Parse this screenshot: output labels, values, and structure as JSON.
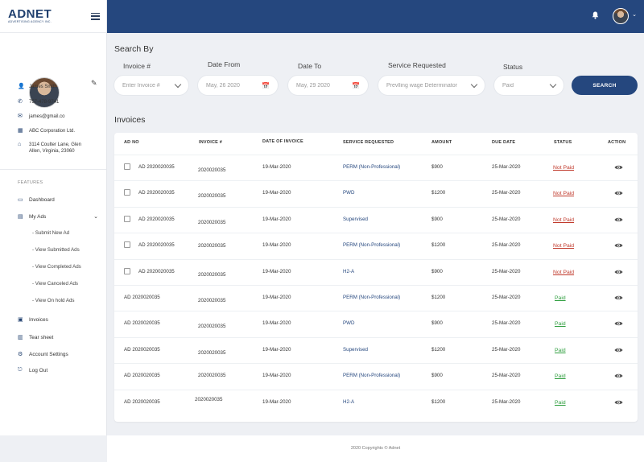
{
  "brand": {
    "name": "ADNET",
    "tagline": "ADVERTISING AGENCY INC."
  },
  "profile": {
    "name": "James Smith",
    "phone": "757-478-9741",
    "email": "james@gmail.co",
    "company": "ABC Corporation Ltd.",
    "address": "3114 Coulter Lane, Glen Allen, Virginia, 23060"
  },
  "nav": {
    "section_label": "FEATURES",
    "dashboard": "Dashboard",
    "my_ads": "My Ads",
    "sub_items": [
      "- Submit New Ad",
      "- View Submitted Ads",
      "- View Completed Ads",
      "- View Canceled Ads",
      "- View On hold Ads"
    ],
    "invoices": "Invoices",
    "tear_sheet": "Tear sheet",
    "account_settings": "Account Settings",
    "log_out": "Log Out"
  },
  "search": {
    "title": "Search By",
    "invoice_label": "Invoice #",
    "invoice_placeholder": "Enter Invoice #",
    "date_from_label": "Date From",
    "date_from_value": "May, 26 2020",
    "date_to_label": "Date To",
    "date_to_value": "May, 29 2020",
    "service_label": "Service Requested",
    "service_value": "Prevlling wage Determinator",
    "status_label": "Status",
    "status_value": "Paid",
    "button": "SEARCH"
  },
  "invoices": {
    "title": "Invoices",
    "columns": [
      "AD NO",
      "INVOICE #",
      "DATE OF INVOICE",
      "SERVICE REQUESTED",
      "AMOUNT",
      "DUE DATE",
      "STATUS",
      "ACTION"
    ],
    "rows": [
      {
        "ad_no": "AD 2020020035",
        "invoice": "2020020035",
        "date": "19-Mar-2020",
        "service": "PERM (Non-Professional)",
        "amount": "$900",
        "due": "25-Mar-2020",
        "status": "Not Paid",
        "checkbox": true
      },
      {
        "ad_no": "AD 2020020035",
        "invoice": "2020020035",
        "date": "19-Mar-2020",
        "service": "PWD",
        "amount": "$1200",
        "due": "25-Mar-2020",
        "status": "Not Paid",
        "checkbox": true
      },
      {
        "ad_no": "AD 2020020035",
        "invoice": "2020020035",
        "date": "19-Mar-2020",
        "service": "Supervised",
        "amount": "$900",
        "due": "25-Mar-2020",
        "status": "Not Paid",
        "checkbox": true
      },
      {
        "ad_no": "AD 2020020035",
        "invoice": "2020020035",
        "date": "19-Mar-2020",
        "service": "PERM (Non-Professional)",
        "amount": "$1200",
        "due": "25-Mar-2020",
        "status": "Not Paid",
        "checkbox": true
      },
      {
        "ad_no": "AD 2020020035",
        "invoice": "2020020035",
        "date": "19-Mar-2020",
        "service": "H2-A",
        "amount": "$900",
        "due": "25-Mar-2020",
        "status": "Not Paid",
        "checkbox": true
      },
      {
        "ad_no": "AD 2020020035",
        "invoice": "2020020035",
        "date": "19-Mar-2020",
        "service": "PERM (Non-Professional)",
        "amount": "$1200",
        "due": "25-Mar-2020",
        "status": "Paid",
        "checkbox": false
      },
      {
        "ad_no": "AD 2020020035",
        "invoice": "2020020035",
        "date": "19-Mar-2020",
        "service": "PWD",
        "amount": "$900",
        "due": "25-Mar-2020",
        "status": "Paid",
        "checkbox": false
      },
      {
        "ad_no": "AD 2020020035",
        "invoice": "2020020035",
        "date": "19-Mar-2020",
        "service": "Supervised",
        "amount": "$1200",
        "due": "25-Mar-2020",
        "status": "Paid",
        "checkbox": false
      },
      {
        "ad_no": "AD 2020020035",
        "invoice": "2020020035",
        "date": "19-Mar-2020",
        "service": "PERM (Non-Professional)",
        "amount": "$900",
        "due": "25-Mar-2020",
        "status": "Paid",
        "checkbox": false
      },
      {
        "ad_no": "AD 2020020035",
        "invoice": "2020020035",
        "date": "19-Mar-2020",
        "service": "H2-A",
        "amount": "$1200",
        "due": "25-Mar-2020",
        "status": "Paid",
        "checkbox": false
      }
    ]
  },
  "footer": "2020 Copyrights © Adnet",
  "colors": {
    "primary": "#25477e",
    "not_paid": "#c0392b",
    "paid": "#2e9e3e"
  },
  "icons": {
    "bell": "bell-icon",
    "eye": "eye-icon",
    "calendar": "calendar-icon",
    "menu": "hamburger-icon",
    "edit": "edit-icon"
  }
}
